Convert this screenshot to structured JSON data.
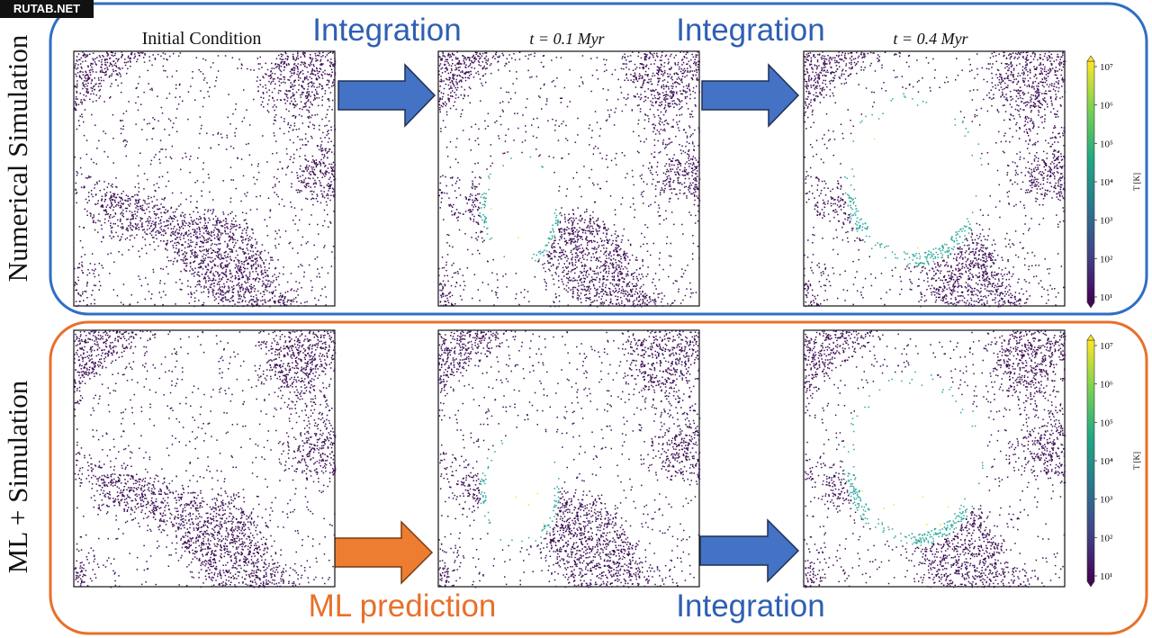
{
  "watermark": "RUTAB.NET",
  "rows": [
    {
      "label": "Numerical Simulation",
      "steps": [
        "Integration",
        "Integration"
      ]
    },
    {
      "label": "ML + Simulation",
      "steps": [
        "ML prediction",
        "Integration"
      ]
    }
  ],
  "panel_titles": [
    "Initial Condition",
    "t = 0.1 Myr",
    "t = 0.4 Myr"
  ],
  "colorbar": {
    "label": "T [K]",
    "ticks": [
      "10¹",
      "10²",
      "10³",
      "10⁴",
      "10⁵",
      "10⁶",
      "10⁷"
    ]
  }
}
